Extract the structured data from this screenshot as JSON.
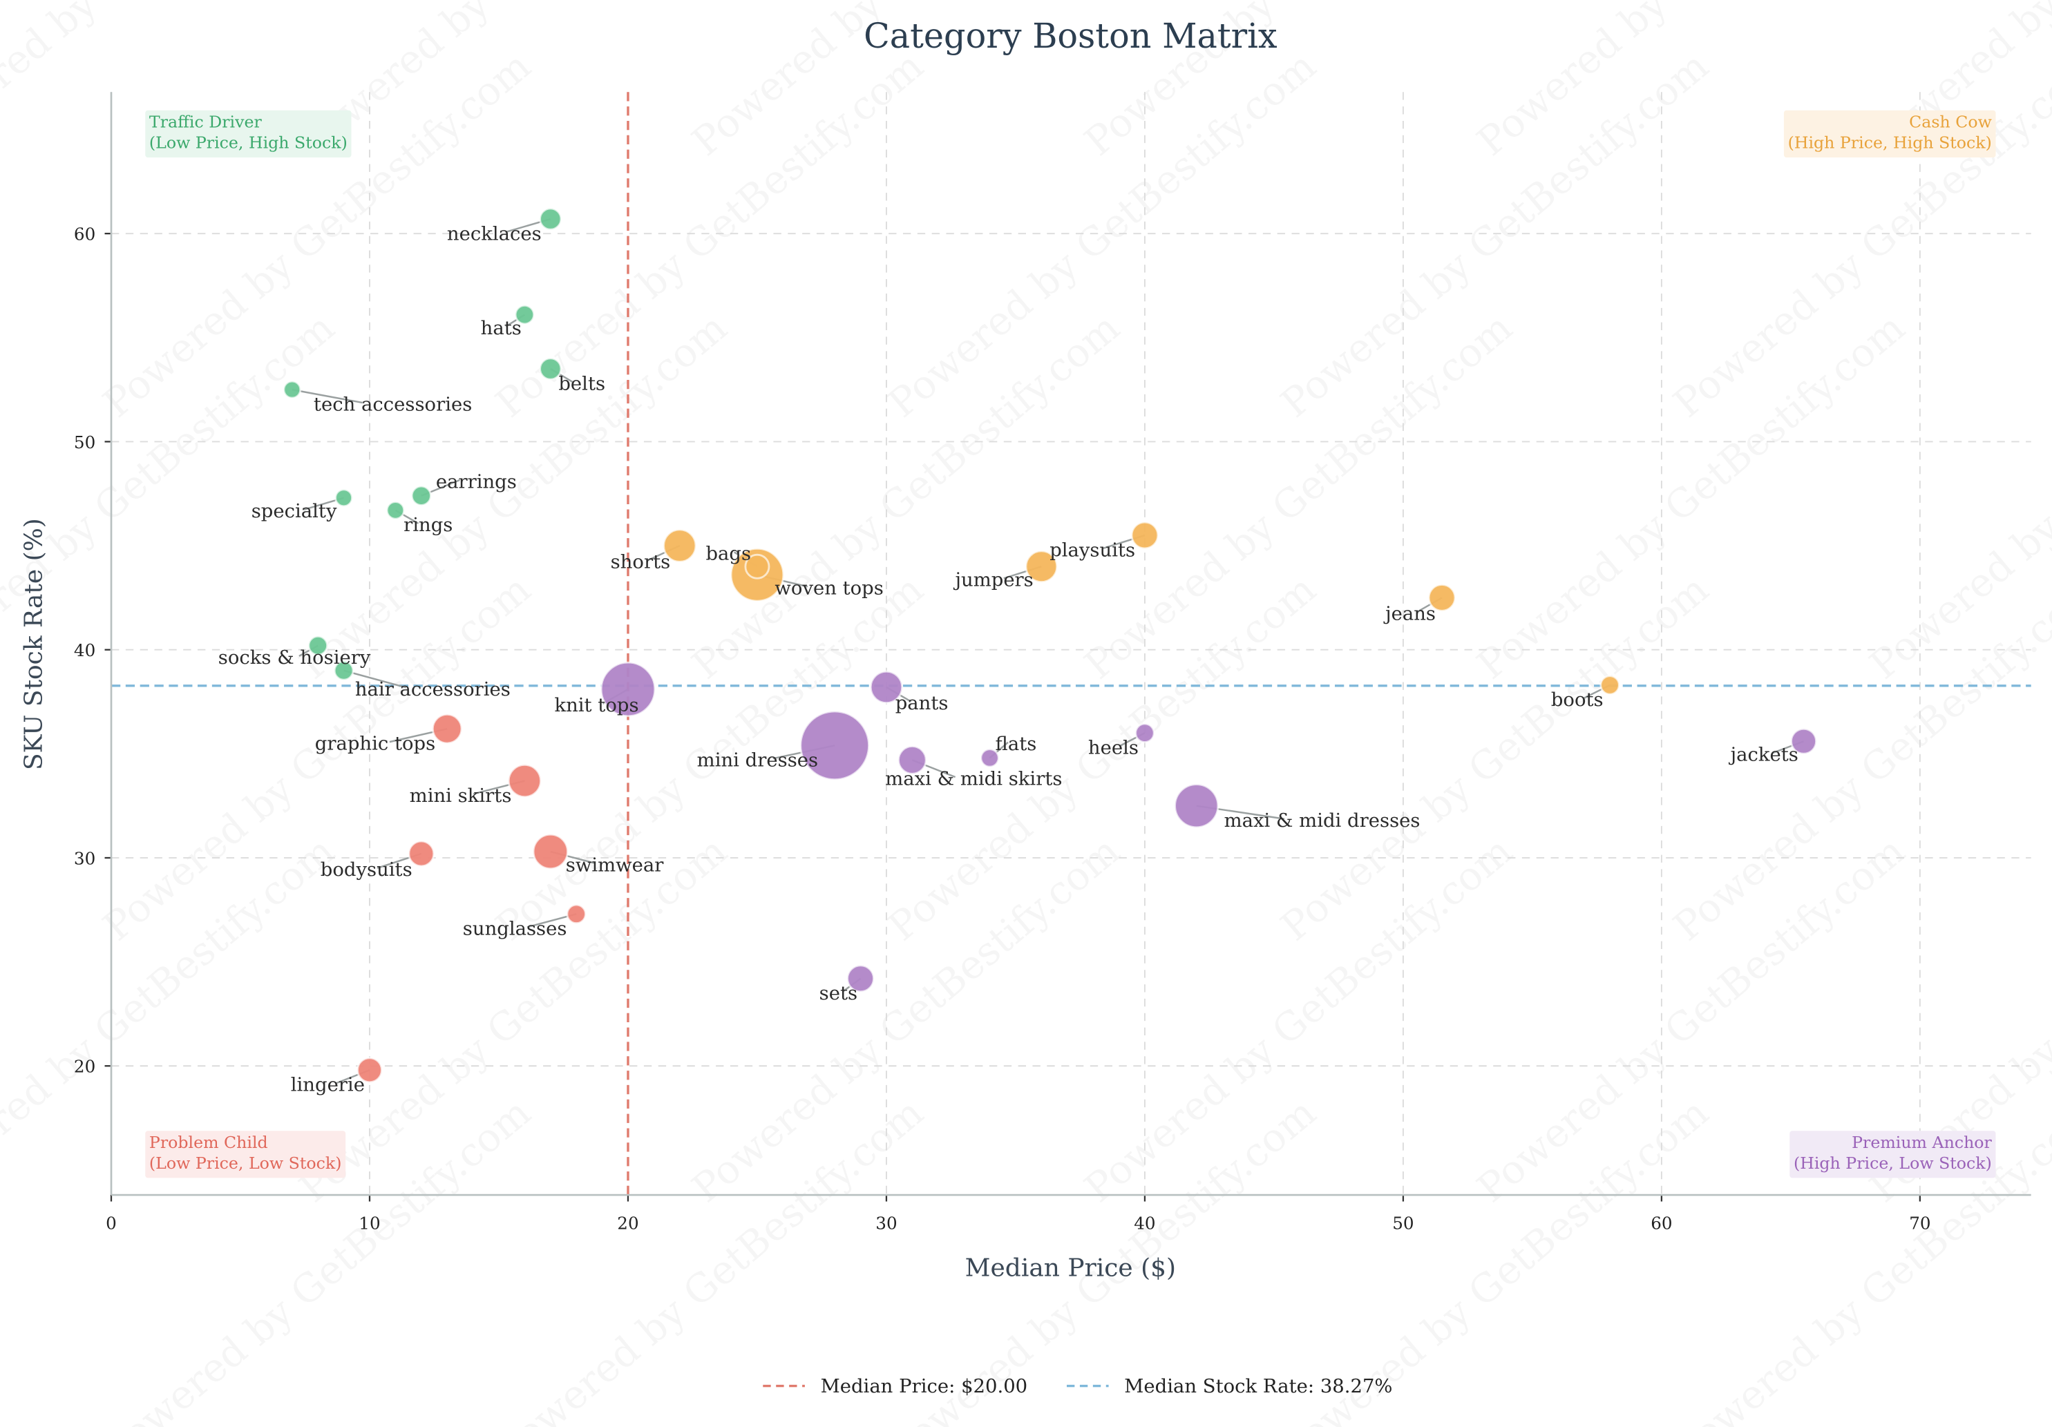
{
  "chart_data": {
    "type": "scatter",
    "title": "Category Boston Matrix",
    "xlabel": "Median Price ($)",
    "ylabel": "SKU Stock Rate (%)",
    "xlim": [
      0,
      74.3
    ],
    "ylim": [
      13.8,
      66.8
    ],
    "x_ticks": [
      0,
      10,
      20,
      30,
      40,
      50,
      60,
      70
    ],
    "y_ticks": [
      20,
      30,
      40,
      50,
      60
    ],
    "grid": true,
    "median_price": 20.0,
    "median_stock_rate": 38.27,
    "legend_position": "bottom-center",
    "legend": [
      {
        "label": "Median Price: $20.00",
        "color": "#e07b6e",
        "style": "dashed"
      },
      {
        "label": "Median Stock Rate: 38.27%",
        "color": "#7fb8da",
        "style": "dashed"
      }
    ],
    "quadrants": [
      {
        "key": "traffic",
        "title": "Traffic Driver",
        "subtitle": "(Low Price, High Stock)",
        "color": "#3aa86b",
        "bg": "#e8f6ee",
        "position": "top-left"
      },
      {
        "key": "cash",
        "title": "Cash Cow",
        "subtitle": "(High Price, High Stock)",
        "color": "#e8a23a",
        "bg": "#fdf2e3",
        "position": "top-right"
      },
      {
        "key": "problem",
        "title": "Problem Child",
        "subtitle": "(Low Price, Low Stock)",
        "color": "#e0675a",
        "bg": "#fcebea",
        "position": "bottom-left"
      },
      {
        "key": "premium",
        "title": "Premium Anchor",
        "subtitle": "(High Price, Low Stock)",
        "color": "#9a62b8",
        "bg": "#f1eaf6",
        "position": "bottom-right"
      }
    ],
    "colors": {
      "traffic": "#6cc895",
      "cash": "#f5b75c",
      "problem": "#ef8579",
      "premium": "#b085c8"
    },
    "points": [
      {
        "name": "necklaces",
        "x": 17,
        "y": 60.7,
        "size": 64,
        "group": "traffic"
      },
      {
        "name": "hats",
        "x": 16,
        "y": 56.1,
        "size": 49,
        "group": "traffic"
      },
      {
        "name": "belts",
        "x": 17,
        "y": 53.5,
        "size": 64,
        "group": "traffic"
      },
      {
        "name": "tech accessories",
        "x": 7,
        "y": 52.5,
        "size": 40,
        "group": "traffic"
      },
      {
        "name": "specialty",
        "x": 9,
        "y": 47.3,
        "size": 40,
        "group": "traffic"
      },
      {
        "name": "earrings",
        "x": 12,
        "y": 47.4,
        "size": 52,
        "group": "traffic"
      },
      {
        "name": "rings",
        "x": 11,
        "y": 46.7,
        "size": 42,
        "group": "traffic"
      },
      {
        "name": "shorts",
        "x": 22,
        "y": 45.0,
        "size": 150,
        "group": "cash"
      },
      {
        "name": "woven tops",
        "x": 25,
        "y": 43.6,
        "size": 400,
        "group": "cash"
      },
      {
        "name": "bags",
        "x": 25,
        "y": 44.0,
        "size": 81,
        "group": "cash"
      },
      {
        "name": "playsuits",
        "x": 40,
        "y": 45.5,
        "size": 100,
        "group": "cash"
      },
      {
        "name": "jumpers",
        "x": 36,
        "y": 44.0,
        "size": 140,
        "group": "cash"
      },
      {
        "name": "jeans",
        "x": 51.5,
        "y": 42.5,
        "size": 100,
        "group": "cash"
      },
      {
        "name": "socks & hosiery",
        "x": 8,
        "y": 40.2,
        "size": 50,
        "group": "traffic"
      },
      {
        "name": "hair accessories",
        "x": 9,
        "y": 39.0,
        "size": 50,
        "group": "traffic"
      },
      {
        "name": "knit tops",
        "x": 20,
        "y": 38.1,
        "size": 420,
        "group": "premium"
      },
      {
        "name": "pants",
        "x": 30,
        "y": 38.2,
        "size": 144,
        "group": "premium"
      },
      {
        "name": "boots",
        "x": 58,
        "y": 38.3,
        "size": 49,
        "group": "cash"
      },
      {
        "name": "graphic tops",
        "x": 13,
        "y": 36.2,
        "size": 121,
        "group": "problem"
      },
      {
        "name": "heels",
        "x": 40,
        "y": 36.0,
        "size": 49,
        "group": "premium"
      },
      {
        "name": "jackets",
        "x": 65.5,
        "y": 35.6,
        "size": 90,
        "group": "premium"
      },
      {
        "name": "mini dresses",
        "x": 28,
        "y": 35.4,
        "size": 680,
        "group": "premium"
      },
      {
        "name": "flats",
        "x": 34,
        "y": 34.8,
        "size": 45,
        "group": "premium"
      },
      {
        "name": "maxi & midi skirts",
        "x": 31,
        "y": 34.7,
        "size": 110,
        "group": "premium"
      },
      {
        "name": "mini skirts",
        "x": 16,
        "y": 33.7,
        "size": 150,
        "group": "problem"
      },
      {
        "name": "maxi & midi dresses",
        "x": 42,
        "y": 32.5,
        "size": 270,
        "group": "premium"
      },
      {
        "name": "bodysuits",
        "x": 12,
        "y": 30.2,
        "size": 90,
        "group": "problem"
      },
      {
        "name": "swimwear",
        "x": 17,
        "y": 30.3,
        "size": 170,
        "group": "problem"
      },
      {
        "name": "sunglasses",
        "x": 18,
        "y": 27.3,
        "size": 49,
        "group": "problem"
      },
      {
        "name": "sets",
        "x": 29,
        "y": 24.2,
        "size": 100,
        "group": "premium"
      },
      {
        "name": "lingerie",
        "x": 10,
        "y": 19.8,
        "size": 85,
        "group": "problem"
      }
    ]
  },
  "watermark": "Powered by GetBestify.com"
}
